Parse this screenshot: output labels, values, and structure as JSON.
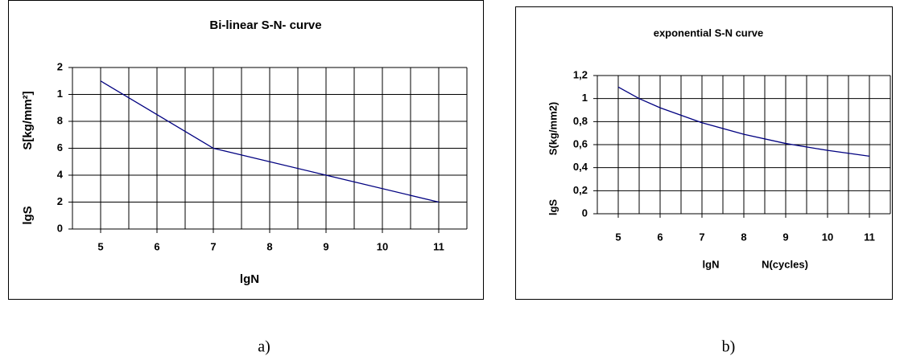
{
  "chart_data": [
    {
      "type": "line",
      "title": "Bi-linear S-N- curve",
      "x": [
        5,
        7,
        9,
        11
      ],
      "series": [
        {
          "name": null,
          "color": "#000080",
          "values": [
            1.1,
            0.6,
            0.4,
            0.2
          ]
        }
      ],
      "xlim": [
        4.5,
        11.5
      ],
      "xticks": [
        5,
        6,
        7,
        8,
        9,
        10,
        11
      ],
      "ylim": [
        0,
        1.2
      ],
      "yticks": [
        0,
        {
          "value": 0.2,
          "label": "2"
        },
        {
          "value": 0.4,
          "label": "4"
        },
        {
          "value": 0.6,
          "label": "6"
        },
        {
          "value": 0.8,
          "label": "8"
        },
        1,
        {
          "value": 1.2,
          "label": "2"
        }
      ],
      "xlabel": [
        "lgN"
      ],
      "ylabel": [
        "S[kg/mm²]",
        "lgS"
      ],
      "grid": true
    },
    {
      "type": "line",
      "title": "exponential S-N curve",
      "x": [
        5,
        5.5,
        6,
        7,
        8,
        9,
        10,
        11
      ],
      "series": [
        {
          "name": null,
          "color": "#000080",
          "values": [
            1.1,
            1.0,
            0.92,
            0.79,
            0.69,
            0.61,
            0.55,
            0.5
          ]
        }
      ],
      "xlim": [
        4.5,
        11.5
      ],
      "xticks": [
        5,
        6,
        7,
        8,
        9,
        10,
        11
      ],
      "ylim": [
        0,
        1.2
      ],
      "yticks": [
        0,
        {
          "value": 0.2,
          "label": "0,2"
        },
        {
          "value": 0.4,
          "label": "0,4"
        },
        {
          "value": 0.6,
          "label": "0,6"
        },
        {
          "value": 0.8,
          "label": "0,8"
        },
        1,
        {
          "value": 1.2,
          "label": "1,2"
        }
      ],
      "xlabel": [
        "lgN",
        "N(cycles)"
      ],
      "ylabel": [
        "S(kg/mm2)",
        "lgS"
      ],
      "grid": true
    }
  ],
  "captions": [
    "a)",
    "b)"
  ]
}
